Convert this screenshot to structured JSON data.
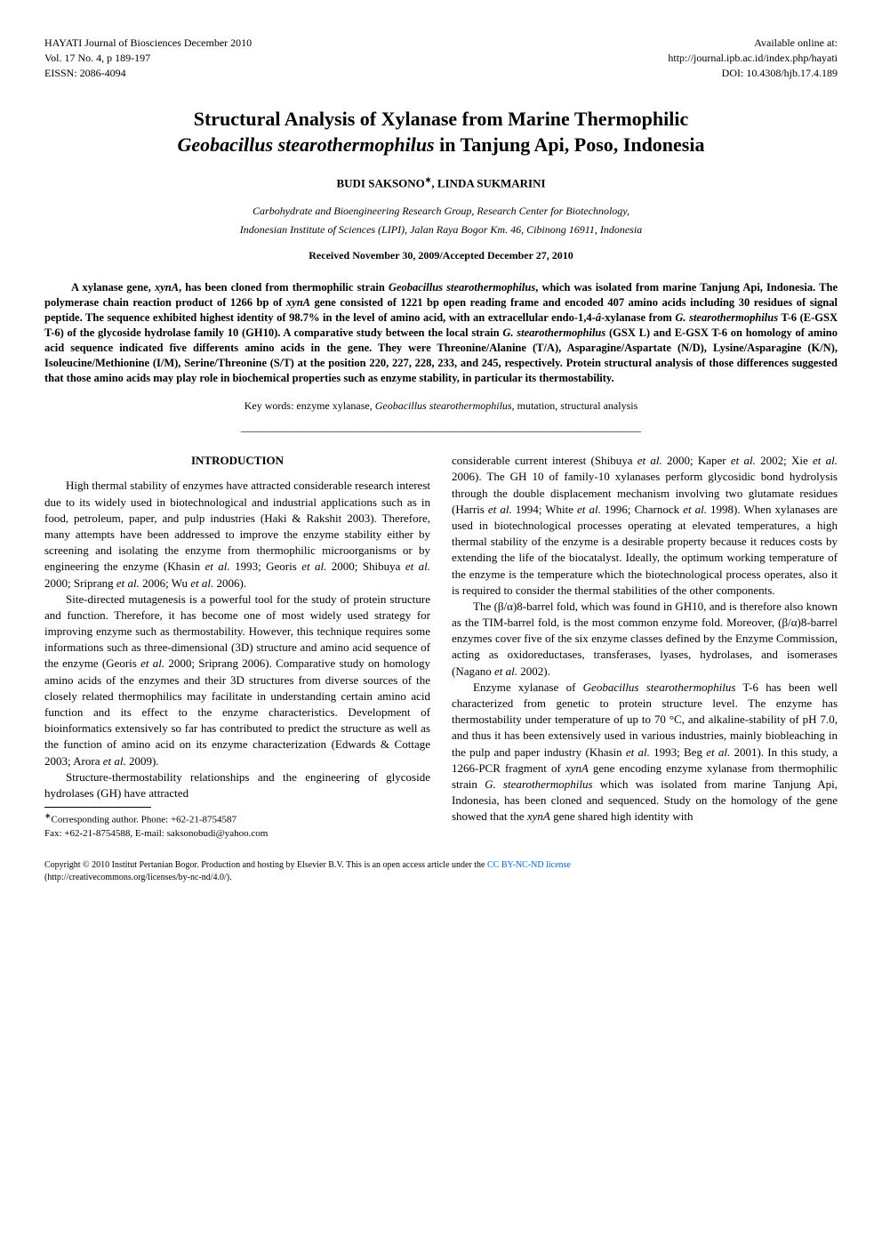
{
  "header": {
    "journal": "HAYATI Journal of Biosciences December 2010",
    "volume": "Vol. 17 No. 4, p 189-197",
    "eissn": "EISSN: 2086-4094",
    "available": "Available online at:",
    "url": "http://journal.ipb.ac.id/index.php/hayati",
    "doi": "DOI: 10.4308/hjb.17.4.189"
  },
  "title": {
    "line1": "Structural Analysis of Xylanase from Marine Thermophilic",
    "line2_italic": "Geobacillus stearothermophilus",
    "line2_rest": " in Tanjung Api, Poso, Indonesia"
  },
  "authors": "BUDI SAKSONO*, LINDA SUKMARINI",
  "affiliation": {
    "line1": "Carbohydrate and Bioengineering Research Group, Research Center for Biotechnology,",
    "line2": "Indonesian Institute of Sciences (LIPI), Jalan Raya Bogor Km. 46, Cibinong 16911, Indonesia"
  },
  "dates": "Received November 30, 2009/Accepted December 27, 2010",
  "abstract": {
    "text": "A xylanase gene, xynA, has been cloned from thermophilic strain Geobacillus stearothermophilus, which was isolated from marine Tanjung Api, Indonesia. The polymerase chain reaction product of 1266 bp of xynA gene consisted of 1221 bp open reading frame and encoded 407 amino acids including 30 residues of signal peptide. The sequence exhibited highest identity of 98.7% in the level of amino acid, with an extracellular endo-1,4-â-xylanase from G. stearothermophilus T-6 (E-GSX T-6) of the glycoside hydrolase family 10 (GH10). A comparative study between the local strain G. stearothermophilus (GSX L) and E-GSX T-6 on homology of amino acid sequence indicated five differents amino acids in the gene. They were Threonine/Alanine (T/A), Asparagine/Aspartate (N/D), Lysine/Asparagine (K/N), Isoleucine/Methionine (I/M), Serine/Threonine (S/T) at the position 220, 227, 228, 233, and 245, respectively. Protein structural analysis of those differences suggested that those amino acids may play role in biochemical properties such as enzyme stability, in particular its thermostability."
  },
  "keywords": {
    "label": "Key words: ",
    "text": "enzyme xylanase, Geobacillus stearothermophilus, mutation, structural analysis"
  },
  "separator": "___________________________________________________________________________",
  "introduction": {
    "title": "INTRODUCTION",
    "p1": "High thermal stability of enzymes have attracted considerable research interest due to its widely used in biotechnological and industrial applications such as in food, petroleum, paper, and pulp industries (Haki & Rakshit 2003). Therefore, many attempts have been addressed to improve the enzyme stability either by screening and isolating the enzyme from thermophilic microorganisms or by engineering the enzyme (Khasin et al. 1993; Georis et al. 2000; Shibuya et al. 2000; Sriprang et al. 2006; Wu et al. 2006).",
    "p2": "Site-directed mutagenesis is a powerful tool for the study of protein structure and function. Therefore, it has become one of most widely used strategy for improving enzyme such as thermostability. However, this technique requires some informations such as three-dimensional (3D) structure and amino acid sequence of the enzyme (Georis et al. 2000; Sriprang 2006). Comparative study on homology amino acids of the enzymes and their 3D structures from diverse sources of the closely related thermophilics may facilitate in understanding certain amino acid function and its effect to the enzyme characteristics. Development of bioinformatics extensively so far has contributed to predict the structure as well as the function of amino acid on its enzyme characterization (Edwards & Cottage 2003; Arora et al. 2009).",
    "p3": "Structure-thermostability relationships and the engineering of glycoside hydrolases (GH) have attracted",
    "p4": "considerable current interest (Shibuya et al. 2000; Kaper et al. 2002; Xie et al. 2006). The GH 10 of family-10 xylanases perform glycosidic bond hydrolysis through the double displacement mechanism involving two glutamate residues (Harris et al. 1994; White et al. 1996; Charnock et al. 1998). When xylanases are used in biotechnological processes operating at elevated temperatures, a high thermal stability of the enzyme is a desirable property because it reduces costs by extending the life of the biocatalyst. Ideally, the optimum working temperature of the enzyme is the temperature which the biotechnological process operates, also it is required to consider the thermal stabilities of the other components.",
    "p5": "The (β/α)8-barrel fold, which was found in GH10, and is therefore also known as the TIM-barrel fold, is the most common enzyme fold. Moreover, (β/α)8-barrel enzymes cover five of the six enzyme classes defined by the Enzyme Commission, acting as oxidoreductases, transferases, lyases, hydrolases, and isomerases (Nagano et al. 2002).",
    "p6": "Enzyme xylanase of Geobacillus stearothermophilus T-6 has been well characterized from genetic to protein structure level. The enzyme has thermostability under temperature of up to 70 °C, and alkaline-stability of pH 7.0, and thus it has been extensively used in various industries, mainly biobleaching in the pulp and paper industry (Khasin et al. 1993; Beg et al. 2001). In this study, a 1266-PCR fragment of xynA gene encoding enzyme xylanase from thermophilic strain G. stearothermophilus which was isolated from marine Tanjung Api, Indonesia, has been cloned and sequenced. Study on the homology of the gene showed that the xynA gene shared high identity with"
  },
  "corresponding": {
    "line1": "*Corresponding author. Phone: +62-21-8754587",
    "line2": "Fax: +62-21-8754588, E-mail: saksonobudi@yahoo.com"
  },
  "copyright": {
    "text": "Copyright © 2010 Institut Pertanian Bogor. Production and hosting by Elsevier B.V. This is an open access article under the ",
    "link": "CC BY-NC-ND license",
    "rest": " (http://creativecommons.org/licenses/by-nc-nd/4.0/)."
  }
}
